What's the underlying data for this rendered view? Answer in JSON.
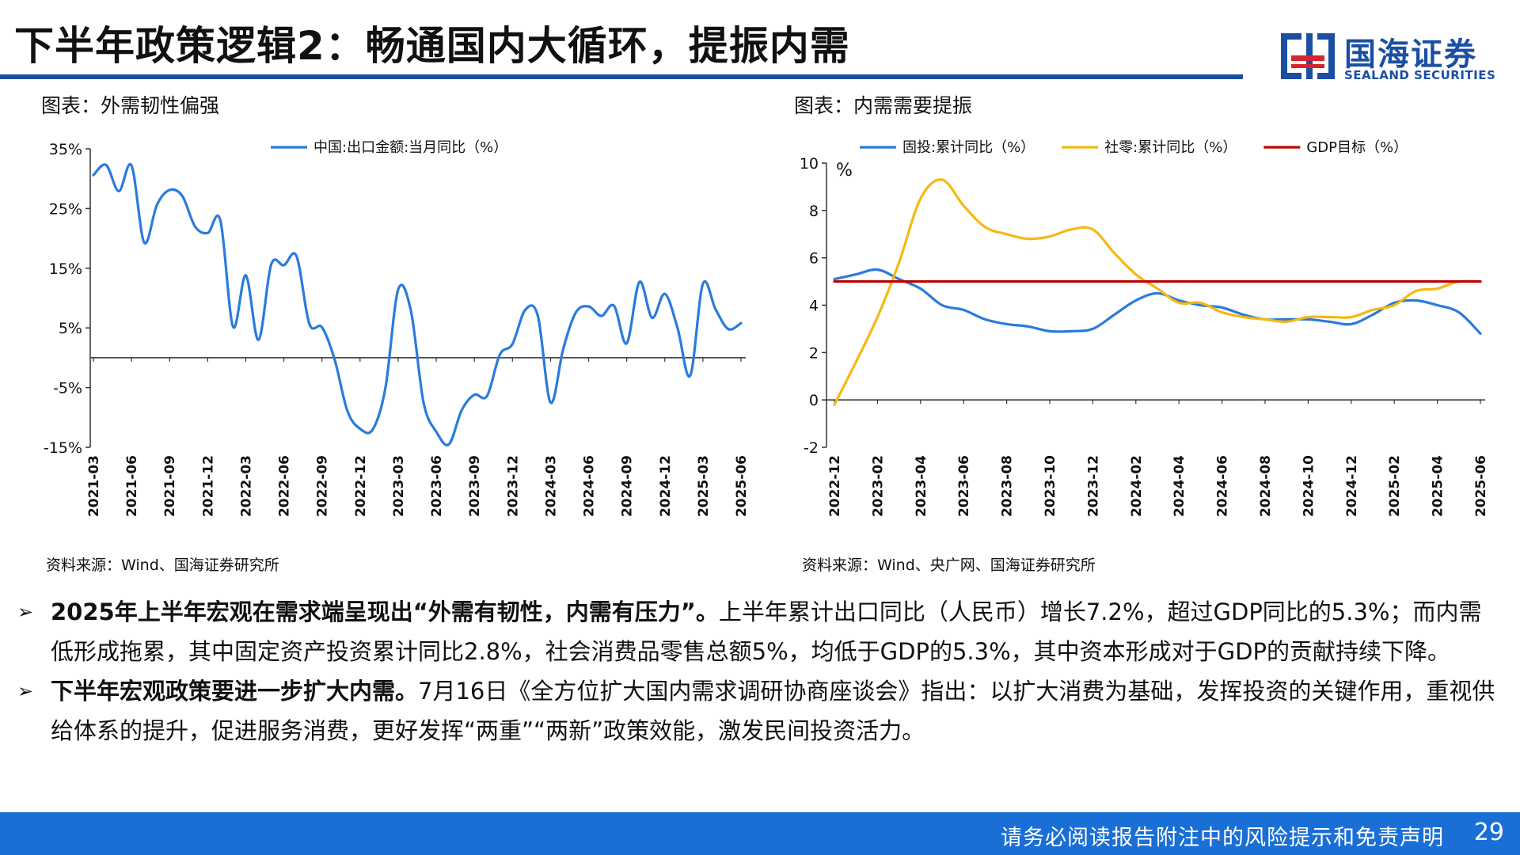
{
  "header": {
    "title": "下半年政策逻辑2：畅通国内大循环，提振内需"
  },
  "logo": {
    "cn": "国海证券",
    "en": "SEALAND SECURITIES"
  },
  "left_panel": {
    "caption": "图表：外需韧性偏强",
    "source": "资料来源：Wind、国海证券研究所"
  },
  "right_panel": {
    "caption": "图表：内需需要提振",
    "source": "资料来源：Wind、央广网、国海证券研究所"
  },
  "chart_data": [
    {
      "type": "line",
      "ylim": [
        -15,
        35
      ],
      "yticks": [
        "35%",
        "25%",
        "15%",
        "5%",
        "-5%",
        "-15%"
      ],
      "x_ticks": [
        "2021-03",
        "2021-06",
        "2021-09",
        "2021-12",
        "2022-03",
        "2022-06",
        "2022-09",
        "2022-12",
        "2023-03",
        "2023-06",
        "2023-09",
        "2023-12",
        "2024-03",
        "2024-06",
        "2024-09",
        "2024-12",
        "2025-03",
        "2025-06"
      ],
      "series": [
        {
          "name": "中国:出口金额:当月同比（%）",
          "color": "#2a7bdc",
          "x": [
            "2021-03",
            "2021-04",
            "2021-05",
            "2021-06",
            "2021-07",
            "2021-08",
            "2021-09",
            "2021-10",
            "2021-11",
            "2021-12",
            "2022-01",
            "2022-02",
            "2022-03",
            "2022-04",
            "2022-05",
            "2022-06",
            "2022-07",
            "2022-08",
            "2022-09",
            "2022-10",
            "2022-11",
            "2022-12",
            "2023-01",
            "2023-02",
            "2023-03",
            "2023-04",
            "2023-05",
            "2023-06",
            "2023-07",
            "2023-08",
            "2023-09",
            "2023-10",
            "2023-11",
            "2023-12",
            "2024-01",
            "2024-02",
            "2024-03",
            "2024-04",
            "2024-05",
            "2024-06",
            "2024-07",
            "2024-08",
            "2024-09",
            "2024-10",
            "2024-11",
            "2024-12",
            "2025-01",
            "2025-02",
            "2025-03",
            "2025-04",
            "2025-05",
            "2025-06"
          ],
          "values": [
            30.6,
            32.3,
            27.9,
            32.2,
            19.3,
            25.6,
            28.1,
            27.1,
            22.0,
            20.9,
            23.0,
            5.2,
            13.8,
            3.0,
            15.6,
            15.5,
            17.0,
            5.7,
            5.1,
            -0.3,
            -8.9,
            -11.9,
            -12.0,
            -5.0,
            11.4,
            7.9,
            -7.5,
            -12.4,
            -14.5,
            -8.8,
            -6.2,
            -6.4,
            0.5,
            2.3,
            8.0,
            7.0,
            -7.5,
            1.5,
            7.6,
            8.6,
            7.0,
            8.7,
            2.4,
            12.7,
            6.7,
            10.7,
            5.0,
            -3.0,
            12.4,
            8.1,
            4.8,
            5.8
          ]
        }
      ]
    },
    {
      "type": "line",
      "ylim": [
        -2,
        10
      ],
      "yticks": [
        "10",
        "8",
        "6",
        "4",
        "2",
        "0",
        "-2"
      ],
      "unit": "%",
      "x_ticks": [
        "2022-12",
        "2023-02",
        "2023-04",
        "2023-06",
        "2023-08",
        "2023-10",
        "2023-12",
        "2024-02",
        "2024-04",
        "2024-06",
        "2024-08",
        "2024-10",
        "2024-12",
        "2025-02",
        "2025-04",
        "2025-06"
      ],
      "series": [
        {
          "name": "固投:累计同比（%）",
          "color": "#2a7bdc",
          "x": [
            "2022-12",
            "2023-01",
            "2023-02",
            "2023-03",
            "2023-04",
            "2023-05",
            "2023-06",
            "2023-07",
            "2023-08",
            "2023-09",
            "2023-10",
            "2023-11",
            "2023-12",
            "2024-01",
            "2024-02",
            "2024-03",
            "2024-04",
            "2024-05",
            "2024-06",
            "2024-07",
            "2024-08",
            "2024-09",
            "2024-10",
            "2024-11",
            "2024-12",
            "2025-01",
            "2025-02",
            "2025-03",
            "2025-04",
            "2025-05",
            "2025-06"
          ],
          "values": [
            5.1,
            5.3,
            5.5,
            5.1,
            4.7,
            4.0,
            3.8,
            3.4,
            3.2,
            3.1,
            2.9,
            2.9,
            3.0,
            3.6,
            4.2,
            4.5,
            4.2,
            4.0,
            3.9,
            3.6,
            3.4,
            3.4,
            3.4,
            3.3,
            3.2,
            3.6,
            4.1,
            4.2,
            4.0,
            3.7,
            2.8
          ]
        },
        {
          "name": "社零:累计同比（%）",
          "color": "#f5b814",
          "x": [
            "2022-12",
            "2023-01",
            "2023-02",
            "2023-03",
            "2023-04",
            "2023-05",
            "2023-06",
            "2023-07",
            "2023-08",
            "2023-09",
            "2023-10",
            "2023-11",
            "2023-12",
            "2024-01",
            "2024-02",
            "2024-03",
            "2024-04",
            "2024-05",
            "2024-06",
            "2024-07",
            "2024-08",
            "2024-09",
            "2024-10",
            "2024-11",
            "2024-12",
            "2025-01",
            "2025-02",
            "2025-03",
            "2025-04",
            "2025-05",
            "2025-06"
          ],
          "values": [
            -0.2,
            1.6,
            3.5,
            5.8,
            8.5,
            9.3,
            8.2,
            7.3,
            7.0,
            6.8,
            6.9,
            7.2,
            7.2,
            6.2,
            5.3,
            4.7,
            4.1,
            4.1,
            3.7,
            3.5,
            3.4,
            3.3,
            3.5,
            3.5,
            3.5,
            3.8,
            4.0,
            4.6,
            4.7,
            5.0,
            5.0
          ]
        },
        {
          "name": "GDP目标（%）",
          "color": "#c00000",
          "x": [
            "2022-12",
            "2025-06"
          ],
          "values": [
            5.0,
            5.0
          ]
        }
      ]
    }
  ],
  "bullets": [
    {
      "bold": "2025年上半年宏观在需求端呈现出“外需有韧性，内需有压力”。",
      "text": "上半年累计出口同比（人民币）增长7.2%，超过GDP同比的5.3%；而内需低形成拖累，其中固定资产投资累计同比2.8%，社会消费品零售总额5%，均低于GDP的5.3%，其中资本形成对于GDP的贡献持续下降。"
    },
    {
      "bold": "下半年宏观政策要进一步扩大内需。",
      "text": "7月16日《全方位扩大国内需求调研协商座谈会》指出：以扩大消费为基础，发挥投资的关键作用，重视供给体系的提升，促进服务消费，更好发挥“两重”“两新”政策效能，激发民间投资活力。"
    }
  ],
  "footer": {
    "disclaimer": "请务必阅读报告附注中的风险提示和免责声明",
    "page": "29"
  }
}
